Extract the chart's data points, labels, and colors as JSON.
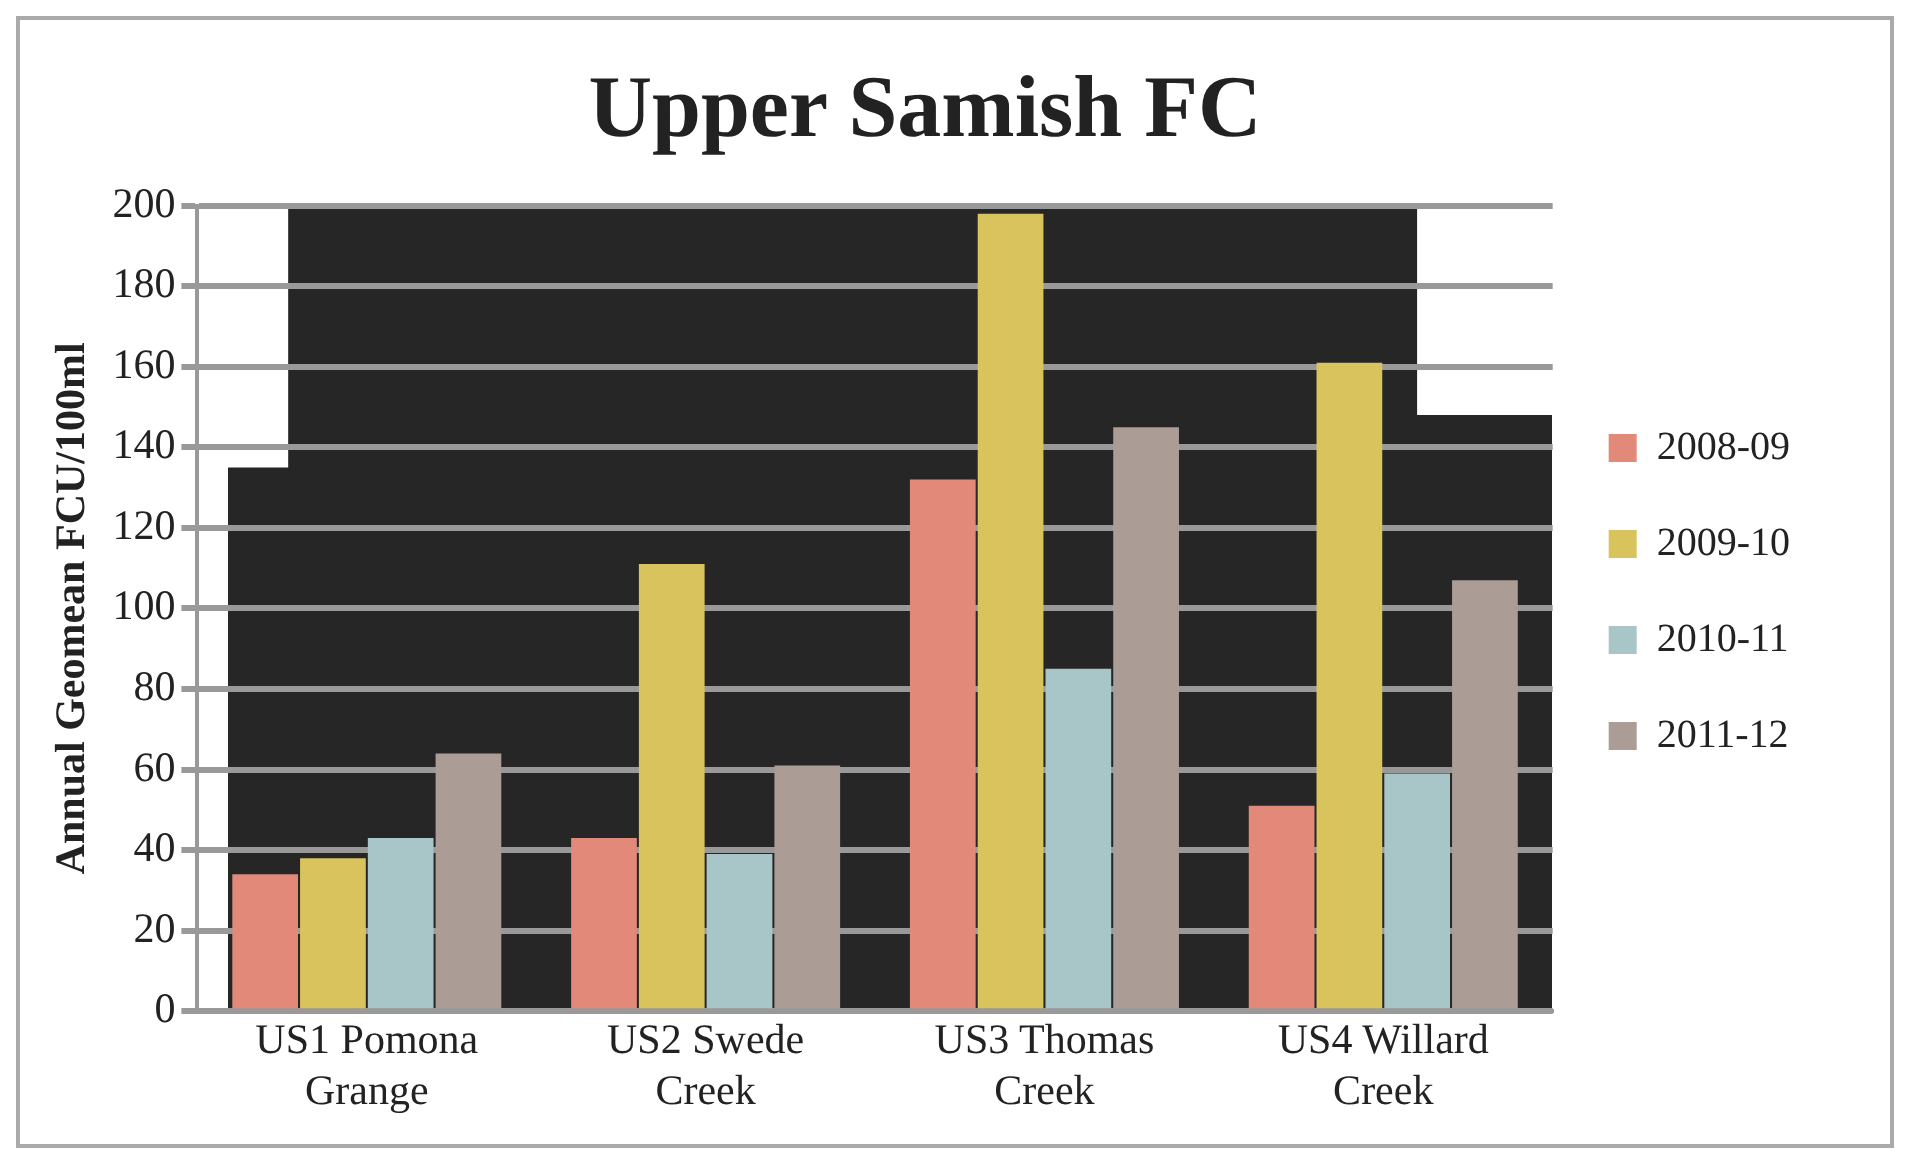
{
  "chart_data": {
    "type": "bar",
    "title": "Upper Samish FC",
    "ylabel": "Annual Geomean FCU/100ml",
    "categories": [
      "US1 Pomona Grange",
      "US2 Swede Creek",
      "US3 Thomas Creek",
      "US4 Willard Creek"
    ],
    "series": [
      {
        "name": "2008-09",
        "color": "#e2897a",
        "values": [
          34,
          43,
          132,
          51
        ]
      },
      {
        "name": "2009-10",
        "color": "#d8c35c",
        "values": [
          38,
          111,
          198,
          161
        ]
      },
      {
        "name": "2010-11",
        "color": "#a8c6c8",
        "values": [
          43,
          39,
          85,
          59
        ]
      },
      {
        "name": "2011-12",
        "color": "#ab9d95",
        "values": [
          64,
          61,
          145,
          107
        ]
      }
    ],
    "ylim": [
      0,
      200
    ],
    "yticks": [
      0,
      20,
      40,
      60,
      80,
      100,
      120,
      140,
      160,
      180,
      200
    ],
    "grid": "y",
    "legend": "right"
  }
}
